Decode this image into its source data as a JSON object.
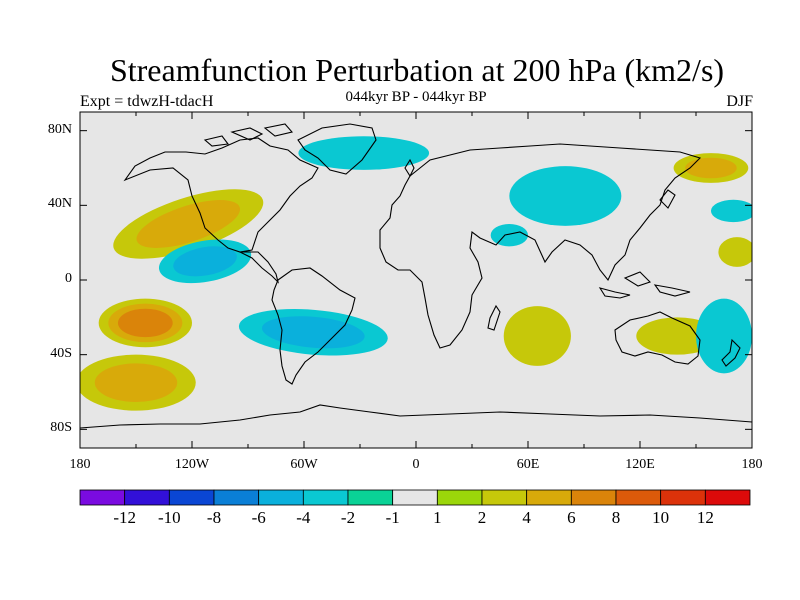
{
  "title": "Streamfunction Perturbation at 200 hPa (km2/s)",
  "left_string": "Expt = tdwzH-tdacH",
  "center_string": "044kyr BP - 044kyr BP",
  "right_string": "DJF",
  "map": {
    "projection": "cylindrical-equidistant",
    "lon_range": [
      -180,
      180
    ],
    "lat_range": [
      -90,
      90
    ],
    "land_outline": "black",
    "background": "#e6e6e6",
    "lat_ticks": [
      {
        "value": 80,
        "label": "80N"
      },
      {
        "value": 40,
        "label": "40N"
      },
      {
        "value": 0,
        "label": "0"
      },
      {
        "value": -40,
        "label": "40S"
      },
      {
        "value": -80,
        "label": "80S"
      }
    ],
    "lon_ticks": [
      {
        "value": -180,
        "label": "180"
      },
      {
        "value": -120,
        "label": "120W"
      },
      {
        "value": -60,
        "label": "60W"
      },
      {
        "value": 0,
        "label": "0"
      },
      {
        "value": 60,
        "label": "60E"
      },
      {
        "value": 120,
        "label": "120E"
      },
      {
        "value": 180,
        "label": "180"
      }
    ]
  },
  "colorbar": {
    "levels": [
      "-12",
      "-10",
      "-8",
      "-6",
      "-4",
      "-2",
      "-1",
      "1",
      "2",
      "4",
      "6",
      "8",
      "10",
      "12"
    ],
    "colors": [
      "#7a0be0",
      "#3210d8",
      "#0a46d4",
      "#0a7fd6",
      "#0ab0dc",
      "#0ac8d2",
      "#0ad296",
      "#e6e6e6",
      "#9bd60a",
      "#c6c80a",
      "#d8aa0a",
      "#da840a",
      "#dc5a0a",
      "#dc320a",
      "#dc0a0a"
    ]
  },
  "fields": [
    {
      "name": "n-pacific-pos",
      "lon": -122,
      "lat": 30,
      "rx": 42,
      "ry": 14,
      "rot": -18,
      "levels": [
        "2",
        "4"
      ]
    },
    {
      "name": "e-pacific-neg",
      "lon": -113,
      "lat": 10,
      "rx": 25,
      "ry": 11,
      "rot": -10,
      "levels": [
        "-2",
        "-4"
      ]
    },
    {
      "name": "sw-pacific-pos",
      "lon": -145,
      "lat": -23,
      "rx": 25,
      "ry": 13,
      "rot": 0,
      "levels": [
        "2",
        "4",
        "6"
      ]
    },
    {
      "name": "s-pacific-pos",
      "lon": -150,
      "lat": -55,
      "rx": 32,
      "ry": 15,
      "rot": 0,
      "levels": [
        "2",
        "4"
      ]
    },
    {
      "name": "s-atlantic-neg",
      "lon": -55,
      "lat": -28,
      "rx": 40,
      "ry": 12,
      "rot": 5,
      "levels": [
        "-2",
        "-4"
      ]
    },
    {
      "name": "n-atlantic-neg",
      "lon": -28,
      "lat": 68,
      "rx": 35,
      "ry": 9,
      "rot": 0,
      "levels": [
        "-2"
      ]
    },
    {
      "name": "asia-neg",
      "lon": 80,
      "lat": 45,
      "rx": 30,
      "ry": 16,
      "rot": 0,
      "levels": [
        "-2"
      ]
    },
    {
      "name": "arabia-neg",
      "lon": 50,
      "lat": 24,
      "rx": 10,
      "ry": 6,
      "rot": 0,
      "levels": [
        "-2"
      ]
    },
    {
      "name": "s-indian-pos",
      "lon": 65,
      "lat": -30,
      "rx": 18,
      "ry": 16,
      "rot": 0,
      "levels": [
        "2"
      ]
    },
    {
      "name": "australia-pos",
      "lon": 140,
      "lat": -30,
      "rx": 22,
      "ry": 10,
      "rot": 0,
      "levels": [
        "2"
      ]
    },
    {
      "name": "tasman-neg",
      "lon": 165,
      "lat": -30,
      "rx": 15,
      "ry": 20,
      "rot": 0,
      "levels": [
        "-2"
      ]
    },
    {
      "name": "w-pacific-pos",
      "lon": 172,
      "lat": 15,
      "rx": 10,
      "ry": 8,
      "rot": 0,
      "levels": [
        "2"
      ]
    },
    {
      "name": "nw-pacific-neg",
      "lon": 170,
      "lat": 37,
      "rx": 12,
      "ry": 6,
      "rot": 0,
      "levels": [
        "-2"
      ]
    },
    {
      "name": "arctic-pos",
      "lon": 158,
      "lat": 60,
      "rx": 20,
      "ry": 8,
      "rot": 0,
      "levels": [
        "2",
        "4"
      ]
    }
  ]
}
